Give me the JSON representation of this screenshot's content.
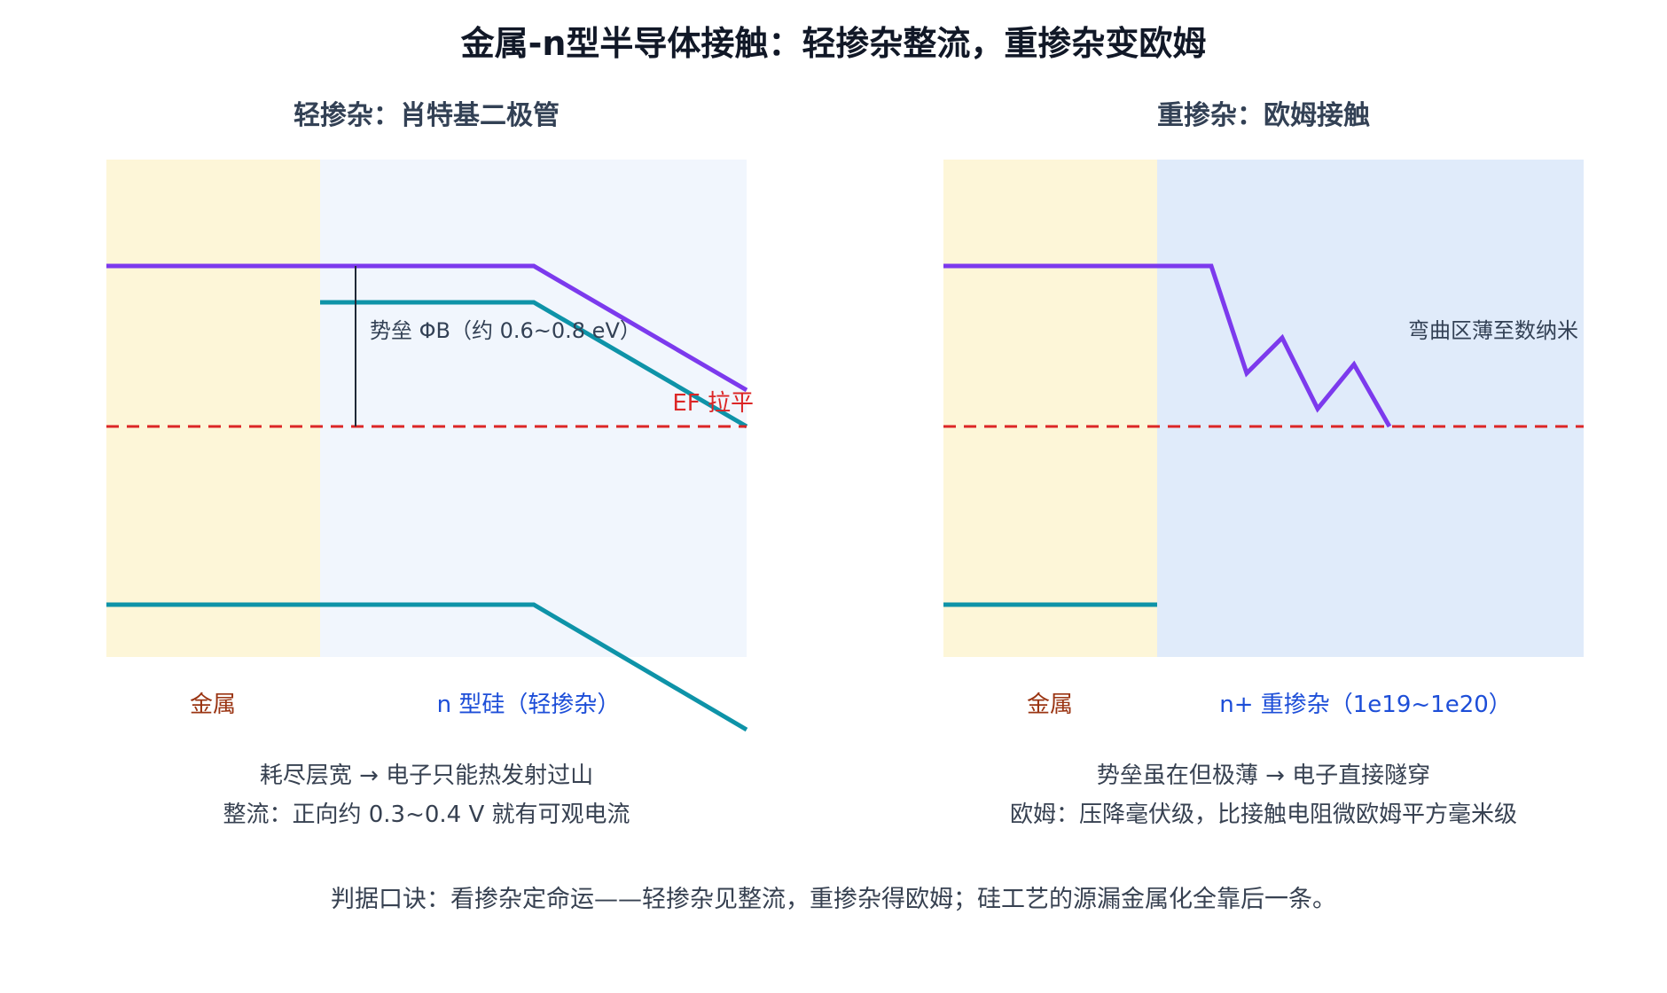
{
  "title": "金属-n型半导体接触：轻掺杂整流，重掺杂变欧姆",
  "left_panel": {
    "subtitle": "轻掺杂：肖特基二极管",
    "barrier_label": "势垒 ΦB（约 0.6~0.8 eV）",
    "ef_label": "EF 拉平",
    "metal_label": "金属",
    "semi_label": "n 型硅（轻掺杂）",
    "caption_1": "耗尽层宽 → 电子只能热发射过山",
    "caption_2": "整流：正向约 0.3~0.4 V 就有可观电流"
  },
  "right_panel": {
    "subtitle": "重掺杂：欧姆接触",
    "bend_label": "弯曲区薄至数纳米",
    "metal_label": "金属",
    "semi_label": "n+ 重掺杂（1e19~1e20）",
    "caption_1": "势垒虽在但极薄 → 电子直接隧穿",
    "caption_2": "欧姆：压降毫伏级，比接触电阻微欧姆平方毫米级"
  },
  "footer": "判据口诀：看掺杂定命运——轻掺杂见整流，重掺杂得欧姆；硅工艺的源漏金属化全靠后一条。",
  "colors": {
    "metal_bg": "#fdf6d8",
    "semi_light_bg": "#f1f6fd",
    "semi_heavy_bg": "#e0ebfa",
    "vacuum_line": "#7c3aed",
    "band_line": "#0e93a8",
    "fermi_line": "#dc2626"
  }
}
